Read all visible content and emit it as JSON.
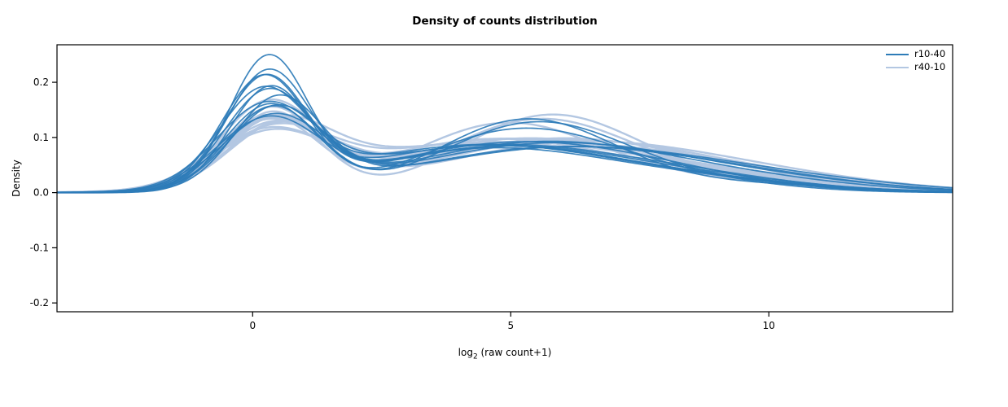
{
  "title": "Density of counts distribution",
  "chart_data": {
    "type": "line",
    "subtype": "density",
    "title": "Density of counts distribution",
    "xlabel_parts": {
      "prefix": "log",
      "sub": "2",
      "suffix": " (raw count+1)"
    },
    "ylabel": "Density",
    "xlim": [
      -3.79,
      13.56
    ],
    "ylim": [
      -0.216,
      0.268
    ],
    "x_ticks": [
      0,
      5,
      10
    ],
    "x_tick_labels": [
      "0",
      "5",
      "10"
    ],
    "y_ticks": [
      -0.2,
      -0.1,
      0.0,
      0.1,
      0.2
    ],
    "y_tick_labels": [
      "-0.2",
      "-0.1",
      "0.0",
      "0.1",
      "0.2"
    ],
    "grid": false,
    "axis_color": "#000000",
    "background": "#ffffff",
    "legend": {
      "position": "top-right",
      "entries": [
        {
          "label": "r10-40",
          "color": "#2e7cb8",
          "line_width": 2
        },
        {
          "label": "r40-10",
          "color": "#b3c7e2",
          "line_width": 2.5
        }
      ]
    },
    "curve_model": "gaussian_mixture: density(x) = sum over components [w, mu, sigma] of w * exp(-((x-mu)^2)/(2*sigma^2)) / (sigma*sqrt(2*pi))",
    "series": [
      {
        "name": "r10-40",
        "color": "#2e7cb8",
        "line_width": 1.7,
        "opacity": 0.92,
        "curves": [
          [
            [
              0.44,
              0.3,
              0.75
            ],
            [
              0.48,
              4.6,
              2.4
            ],
            [
              0.08,
              8.8,
              1.9
            ]
          ],
          [
            [
              0.4,
              0.25,
              0.8
            ],
            [
              0.52,
              4.9,
              2.5
            ],
            [
              0.08,
              9.2,
              2.0
            ]
          ],
          [
            [
              0.38,
              0.35,
              0.8
            ],
            [
              0.54,
              5.2,
              1.9
            ],
            [
              0.08,
              8.5,
              1.8
            ]
          ],
          [
            [
              0.36,
              0.2,
              0.85
            ],
            [
              0.56,
              4.4,
              2.6
            ],
            [
              0.08,
              9.0,
              2.1
            ]
          ],
          [
            [
              0.35,
              0.4,
              0.9
            ],
            [
              0.57,
              5.5,
              1.8
            ],
            [
              0.08,
              9.5,
              2.0
            ]
          ],
          [
            [
              0.37,
              0.3,
              0.85
            ],
            [
              0.55,
              5.0,
              2.5
            ],
            [
              0.08,
              8.2,
              1.9
            ]
          ],
          [
            [
              0.33,
              0.45,
              0.9
            ],
            [
              0.59,
              5.6,
              2.6
            ],
            [
              0.08,
              9.8,
              2.2
            ]
          ],
          [
            [
              0.34,
              0.25,
              0.95
            ],
            [
              0.58,
              4.7,
              2.7
            ],
            [
              0.08,
              8.9,
              2.0
            ]
          ],
          [
            [
              0.36,
              0.35,
              0.9
            ],
            [
              0.56,
              5.3,
              1.7
            ],
            [
              0.08,
              9.4,
              2.1
            ]
          ],
          [
            [
              0.32,
              0.3,
              1.0
            ],
            [
              0.6,
              5.8,
              2.7
            ],
            [
              0.08,
              10.2,
              2.2
            ]
          ],
          [
            [
              0.39,
              0.2,
              0.8
            ],
            [
              0.53,
              4.5,
              2.5
            ],
            [
              0.08,
              8.6,
              1.9
            ]
          ],
          [
            [
              0.35,
              0.5,
              0.85
            ],
            [
              0.57,
              5.9,
              2.8
            ],
            [
              0.08,
              10.0,
              2.1
            ]
          ],
          [
            [
              0.42,
              0.3,
              0.8
            ],
            [
              0.5,
              4.8,
              2.4
            ],
            [
              0.08,
              9.1,
              2.0
            ]
          ],
          [
            [
              0.33,
              0.4,
              1.0
            ],
            [
              0.59,
              6.1,
              2.9
            ],
            [
              0.08,
              10.5,
              2.3
            ]
          ]
        ]
      },
      {
        "name": "r40-10",
        "color": "#b3c7e2",
        "line_width": 2.4,
        "opacity": 1.0,
        "curves": [
          [
            [
              0.28,
              0.4,
              1.1
            ],
            [
              0.62,
              4.8,
              2.6
            ],
            [
              0.1,
              9.0,
              2.1
            ]
          ],
          [
            [
              0.3,
              0.3,
              1.0
            ],
            [
              0.6,
              5.2,
              2.5
            ],
            [
              0.1,
              9.5,
              2.2
            ]
          ],
          [
            [
              0.32,
              0.35,
              0.95
            ],
            [
              0.58,
              5.5,
              1.8
            ],
            [
              0.1,
              8.8,
              2.0
            ]
          ],
          [
            [
              0.29,
              0.45,
              1.05
            ],
            [
              0.61,
              4.5,
              2.7
            ],
            [
              0.1,
              9.2,
              2.1
            ]
          ],
          [
            [
              0.31,
              0.25,
              1.0
            ],
            [
              0.59,
              5.0,
              2.6
            ],
            [
              0.1,
              9.8,
              2.2
            ]
          ],
          [
            [
              0.33,
              0.4,
              0.9
            ],
            [
              0.57,
              5.7,
              1.7
            ],
            [
              0.1,
              8.5,
              2.0
            ]
          ],
          [
            [
              0.3,
              0.5,
              1.0
            ],
            [
              0.6,
              6.0,
              2.6
            ],
            [
              0.1,
              10.0,
              2.2
            ]
          ],
          [
            [
              0.28,
              0.3,
              1.1
            ],
            [
              0.62,
              5.4,
              2.8
            ],
            [
              0.1,
              9.4,
              2.1
            ]
          ],
          [
            [
              0.34,
              0.35,
              0.9
            ],
            [
              0.56,
              4.9,
              1.8
            ],
            [
              0.1,
              8.9,
              2.0
            ]
          ],
          [
            [
              0.31,
              0.45,
              0.95
            ],
            [
              0.59,
              5.8,
              2.5
            ],
            [
              0.1,
              9.6,
              2.2
            ]
          ],
          [
            [
              0.29,
              0.4,
              1.05
            ],
            [
              0.61,
              5.1,
              2.7
            ],
            [
              0.1,
              9.9,
              2.1
            ]
          ],
          [
            [
              0.35,
              0.3,
              0.92
            ],
            [
              0.55,
              4.6,
              2.3
            ],
            [
              0.1,
              8.7,
              1.9
            ]
          ],
          [
            [
              0.3,
              0.55,
              1.0
            ],
            [
              0.6,
              6.3,
              2.7
            ],
            [
              0.1,
              10.3,
              2.3
            ]
          ],
          [
            [
              0.27,
              0.35,
              1.1
            ],
            [
              0.63,
              5.6,
              2.9
            ],
            [
              0.1,
              9.7,
              2.2
            ]
          ]
        ]
      }
    ]
  }
}
